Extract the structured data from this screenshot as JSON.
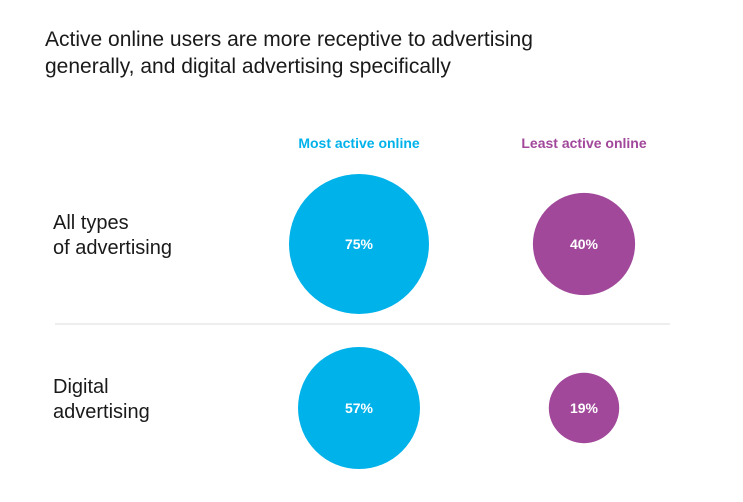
{
  "title_line1": "Active online users are more receptive to advertising",
  "title_line2": "generally, and digital advertising specifically",
  "colors": {
    "most_active": "#00B2EA",
    "least_active": "#A1489A",
    "divider": "#dddddd"
  },
  "chart_data": {
    "type": "bubble",
    "title": "Active online users are more receptive to advertising generally, and digital advertising specifically",
    "columns": [
      "Most active online",
      "Least active online"
    ],
    "rows": [
      {
        "label_lines": [
          "All types",
          "of advertising"
        ],
        "values": [
          75,
          40
        ]
      },
      {
        "label_lines": [
          "Digital",
          "advertising"
        ],
        "values": [
          57,
          19
        ]
      }
    ],
    "unit": "%",
    "legend": "none",
    "grid": false
  }
}
